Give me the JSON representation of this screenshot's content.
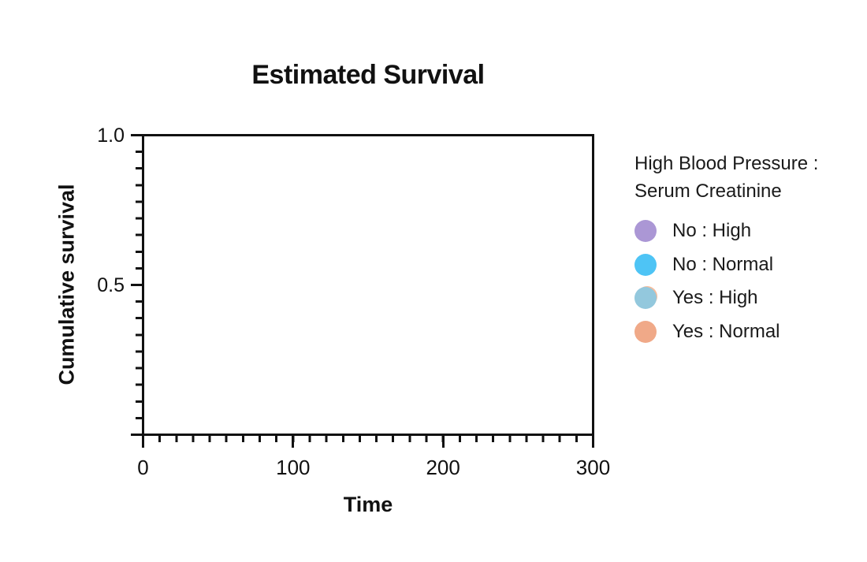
{
  "page": {
    "background_color": "#ffffff",
    "text_color": "#111111",
    "axis_color": "#111111"
  },
  "chart_data": {
    "type": "line",
    "title": "Estimated Survival",
    "xlabel": "Time",
    "ylabel": "Cumulative survival",
    "xlim": [
      0,
      300
    ],
    "ylim": [
      0,
      1.0
    ],
    "x_major_ticks": [
      {
        "value": 0,
        "label": "0"
      },
      {
        "value": 100,
        "label": "100"
      },
      {
        "value": 200,
        "label": "200"
      },
      {
        "value": 300,
        "label": "300"
      }
    ],
    "y_major_ticks": [
      {
        "value": 1.0,
        "label": "1.0"
      },
      {
        "value": 0.5,
        "label": "0.5"
      },
      {
        "value": 0.0,
        "label": ""
      }
    ],
    "minor_tick_divisions_per_major": 9,
    "tick_direction": "outside",
    "grid": false,
    "frame": true,
    "series": [],
    "plot_area_empty": true,
    "legend": {
      "position": "right",
      "title_line1": "High Blood Pressure :",
      "title_line2": "Serum Creatinine",
      "entries": [
        {
          "label": "No : High",
          "color": "#ab97d5",
          "fringe_color": null
        },
        {
          "label": "No : Normal",
          "color": "#4ec4f5",
          "fringe_color": null
        },
        {
          "label": "Yes : High",
          "color": "#93c8dd",
          "fringe_color": "#f5bd9d"
        },
        {
          "label": "Yes : Normal",
          "color": "#f0a988",
          "fringe_color": null
        }
      ]
    }
  }
}
